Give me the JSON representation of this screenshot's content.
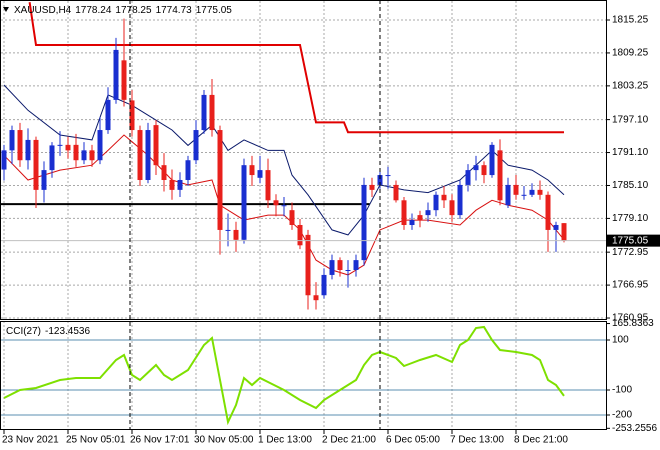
{
  "chart_data": [
    {
      "type": "candlestick",
      "symbol": "XAUUSD,H4",
      "categories": [
        "23 Nov 2021",
        null,
        null,
        null,
        null,
        null,
        null,
        null,
        "25 Nov 05:01",
        null,
        null,
        null,
        null,
        null,
        null,
        null,
        "26 Nov 17:01",
        null,
        null,
        null,
        null,
        null,
        null,
        null,
        "30 Nov 05:00",
        null,
        null,
        null,
        null,
        null,
        null,
        null,
        "1 Dec 13:00",
        null,
        null,
        null,
        null,
        null,
        null,
        null,
        "2 Dec 21:00",
        null,
        null,
        null,
        null,
        null,
        null,
        null,
        "6 Dec 05:00",
        null,
        null,
        null,
        null,
        null,
        null,
        null,
        "7 Dec 13:00",
        null,
        null,
        null,
        null,
        null,
        null,
        null,
        "8 Dec 21:00",
        null,
        null,
        null,
        null,
        null,
        null
      ],
      "open": [
        1788.0,
        1791.5,
        1795.2,
        1789.7,
        1793.4,
        1784.3,
        1787.9,
        1792.4,
        1792.5,
        1792.5,
        1789.7,
        1791.5,
        1789.7,
        1795.2,
        1800.7,
        1807.9,
        1800.6,
        1795.2,
        1786.1,
        1796.1,
        1788.8,
        1786.1,
        1784.3,
        1786.1,
        1789.7,
        1795.2,
        1801.6,
        1795.2,
        1777.0,
        1777.0,
        1775.2,
        1788.8,
        1786.5,
        1787.9,
        1782.4,
        1781.5,
        1780.6,
        1777.9,
        1776.1,
        1765.1,
        1765.1,
        1768.8,
        1771.5,
        1769.7,
        1769.7,
        1771.5,
        1785.2,
        1785.2,
        1787.0,
        1785.2,
        1782.4,
        1777.9,
        1779.7,
        1779.7,
        1780.6,
        1783.4,
        1782.4,
        1779.7,
        1785.2,
        1787.9,
        1788.8,
        1787.0,
        1791.5,
        1781.5,
        1785.2,
        1783.4,
        1783.4,
        1784.3,
        1783.4,
        1777.0,
        1778.24
      ],
      "high": [
        1792.5,
        1796.0,
        1796.5,
        1795.5,
        1794.0,
        1789.5,
        1793.0,
        1795.0,
        1794.0,
        1794.5,
        1793.0,
        1792.5,
        1797.5,
        1803.0,
        1812.0,
        1815.5,
        1802.5,
        1796.0,
        1796.5,
        1797.0,
        1791.0,
        1788.0,
        1787.5,
        1790.5,
        1797.0,
        1802.5,
        1804.5,
        1796.0,
        1780.0,
        1778.5,
        1790.0,
        1790.5,
        1790.5,
        1790.0,
        1783.5,
        1783.0,
        1782.0,
        1779.0,
        1777.0,
        1767.5,
        1770.0,
        1772.5,
        1772.0,
        1771.5,
        1772.5,
        1786.5,
        1786.5,
        1788.0,
        1788.5,
        1786.0,
        1783.0,
        1780.0,
        1780.5,
        1782.0,
        1784.0,
        1785.0,
        1783.5,
        1786.0,
        1789.0,
        1790.5,
        1789.5,
        1793.0,
        1793.5,
        1786.5,
        1787.0,
        1785.0,
        1785.5,
        1786.0,
        1784.0,
        1778.5,
        1778.25
      ],
      "low": [
        1786.0,
        1789.0,
        1788.5,
        1788.0,
        1781.0,
        1782.0,
        1786.5,
        1790.5,
        1790.0,
        1788.5,
        1789.0,
        1788.5,
        1789.0,
        1794.5,
        1800.0,
        1799.5,
        1794.0,
        1785.0,
        1785.5,
        1787.0,
        1784.0,
        1782.5,
        1783.0,
        1785.0,
        1789.0,
        1794.5,
        1794.0,
        1772.5,
        1774.0,
        1773.0,
        1774.5,
        1785.0,
        1785.5,
        1781.0,
        1779.5,
        1779.5,
        1777.0,
        1773.5,
        1762.5,
        1762.5,
        1764.5,
        1768.0,
        1768.5,
        1766.5,
        1768.5,
        1770.5,
        1783.0,
        1784.5,
        1784.5,
        1782.0,
        1777.0,
        1777.0,
        1777.5,
        1778.5,
        1779.5,
        1781.0,
        1778.5,
        1779.0,
        1784.0,
        1786.0,
        1785.5,
        1786.5,
        1781.5,
        1781.0,
        1782.5,
        1782.5,
        1783.0,
        1782.5,
        1773.0,
        1773.0,
        1774.73
      ],
      "close": [
        1791.5,
        1795.2,
        1789.7,
        1793.4,
        1784.3,
        1787.9,
        1792.4,
        1792.5,
        1791.5,
        1789.7,
        1791.5,
        1789.7,
        1795.2,
        1800.7,
        1809.8,
        1800.7,
        1795.2,
        1786.1,
        1795.2,
        1788.8,
        1786.1,
        1784.3,
        1786.1,
        1789.7,
        1795.2,
        1801.6,
        1795.2,
        1777.0,
        1777.0,
        1775.2,
        1788.8,
        1787.0,
        1787.9,
        1782.4,
        1781.5,
        1781.5,
        1777.9,
        1774.2,
        1765.1,
        1764.2,
        1768.8,
        1771.5,
        1769.7,
        1769.7,
        1771.5,
        1785.2,
        1784.3,
        1787.0,
        1787.0,
        1782.4,
        1777.9,
        1778.8,
        1778.8,
        1780.6,
        1783.4,
        1782.4,
        1779.7,
        1785.2,
        1787.9,
        1788.8,
        1787.0,
        1792.5,
        1782.4,
        1785.2,
        1783.4,
        1783.4,
        1784.3,
        1783.4,
        1777.0,
        1777.9,
        1775.05
      ],
      "up_color": "#1a2fd0",
      "down_color": "#e8201c",
      "ylim": [
        1760.59,
        1818.53
      ],
      "yticks": [
        1815.25,
        1809.25,
        1803.25,
        {
          "value": 1797.1,
          "label": "1797.10"
        },
        {
          "value": 1791.1,
          "label": "1791.10"
        },
        {
          "value": 1785.1,
          "label": "1785.10"
        },
        {
          "value": 1779.1,
          "label": "1779.10"
        },
        1772.95,
        1766.95,
        1760.95
      ],
      "grid": true,
      "overlays": [
        {
          "color": "#0b1a6b",
          "width": 1,
          "x": [
            0,
            3,
            7,
            11,
            13,
            16,
            18,
            21,
            23,
            26,
            28,
            30,
            33,
            35,
            36,
            38,
            41,
            43,
            45,
            47,
            50,
            53,
            57,
            59,
            61,
            63,
            66,
            68,
            70
          ],
          "values": [
            1803.4,
            1798.8,
            1794.3,
            1793.4,
            1801.6,
            1799.7,
            1797.9,
            1795.2,
            1792.4,
            1796.1,
            1791.5,
            1793.4,
            1791.5,
            1791.5,
            1787.0,
            1783.4,
            1777.0,
            1776.1,
            1779.7,
            1785.2,
            1784.3,
            1783.8,
            1786.1,
            1788.8,
            1791.5,
            1788.8,
            1787.9,
            1786.1,
            1783.4
          ]
        },
        {
          "color": "#d81010",
          "width": 1,
          "x": [
            0,
            3,
            7,
            11,
            13,
            15,
            18,
            21,
            23,
            26,
            27,
            30,
            33,
            35,
            37,
            39,
            41,
            43,
            45,
            47,
            50,
            53,
            57,
            59,
            61,
            63,
            66,
            68,
            70
          ],
          "values": [
            1790.6,
            1786.1,
            1787.9,
            1788.8,
            1791.5,
            1794.3,
            1790.6,
            1786.1,
            1785.2,
            1786.1,
            1781.5,
            1778.8,
            1779.7,
            1779.7,
            1777.0,
            1771.5,
            1769.7,
            1768.8,
            1770.6,
            1777.0,
            1778.8,
            1778.8,
            1777.9,
            1780.6,
            1782.4,
            1781.5,
            1780.6,
            1778.8,
            1775.2
          ]
        },
        {
          "color": "#e00000",
          "width": 2,
          "x": [
            3.2,
            4,
            37,
            39,
            42.5,
            43,
            70
          ],
          "values": [
            1818.5,
            1810.7,
            1810.7,
            1796.6,
            1796.6,
            1794.8,
            1794.8
          ]
        }
      ],
      "hline": {
        "value": 1781.7,
        "x_end": 45.7,
        "color": "#000000"
      }
    },
    {
      "type": "line",
      "label": "CCI(27)",
      "color": "#7ee000",
      "x": [
        0,
        2,
        4,
        7,
        9,
        12,
        14,
        15,
        16,
        17,
        19,
        20,
        21,
        23,
        25,
        26,
        27,
        28,
        29,
        30,
        31,
        32,
        33,
        35,
        37,
        39,
        40,
        42,
        44,
        45,
        46,
        47,
        49,
        50,
        51,
        52,
        54,
        56,
        57,
        58,
        59,
        60,
        61,
        62,
        64,
        66,
        67,
        68,
        69,
        70
      ],
      "values": [
        -132,
        -100,
        -92,
        -60,
        -52,
        -52,
        20,
        40,
        -40,
        -60,
        0,
        -40,
        -60,
        -20,
        80,
        108,
        -60,
        -228,
        -160,
        -52,
        -80,
        -52,
        -68,
        -100,
        -140,
        -172,
        -140,
        -100,
        -60,
        0,
        40,
        52,
        28,
        -4,
        8,
        20,
        40,
        12,
        80,
        100,
        148,
        152,
        100,
        60,
        52,
        40,
        20,
        -60,
        -80,
        -123.4536
      ],
      "ylim": [
        -260,
        172
      ],
      "yticks": [
        165.8363,
        100,
        -100,
        -200,
        -253.2556
      ],
      "level_color": "#5b8fb0"
    }
  ]
}
